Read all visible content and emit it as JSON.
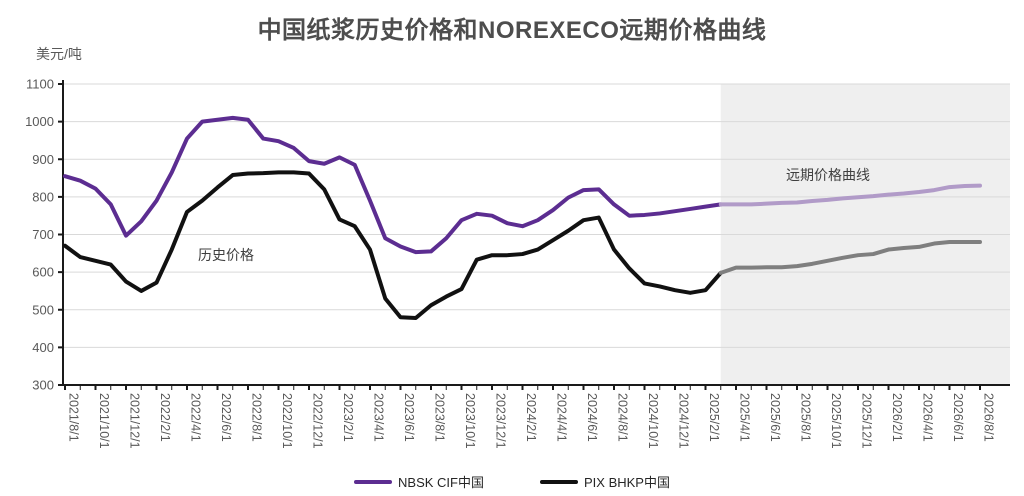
{
  "title": "中国纸浆历史价格和NOREXECO远期价格曲线",
  "y_axis_unit": "美元/吨",
  "annotations": {
    "history_label": "历史价格",
    "forward_label": "远期价格曲线"
  },
  "legend": {
    "items": [
      {
        "label": "NBSK CIF中国",
        "color": "#5C2D91"
      },
      {
        "label": "PIX BHKP中国",
        "color": "#111111"
      }
    ]
  },
  "chart_data": {
    "type": "line",
    "title": "中国纸浆历史价格和NOREXECO远期价格曲线",
    "ylabel": "美元/吨",
    "ylim": [
      300,
      1100
    ],
    "y_ticks": [
      300,
      400,
      500,
      600,
      700,
      800,
      900,
      1000,
      1100
    ],
    "grid": "horizontal",
    "x_start": "2021/8/1",
    "x_step_months": 1,
    "x_tick_labels": [
      "2021/8/1",
      "2021/10/1",
      "2021/12/1",
      "2022/2/1",
      "2022/4/1",
      "2022/6/1",
      "2022/8/1",
      "2022/10/1",
      "2022/12/1",
      "2023/2/1",
      "2023/4/1",
      "2023/6/1",
      "2023/8/1",
      "2023/10/1",
      "2023/12/1",
      "2024/2/1",
      "2024/4/1",
      "2024/6/1",
      "2024/8/1",
      "2024/10/1",
      "2024/12/1",
      "2025/2/1",
      "2025/4/1",
      "2025/6/1",
      "2025/8/1",
      "2025/10/1",
      "2025/12/1",
      "2026/2/1",
      "2026/4/1",
      "2026/6/1",
      "2026/8/1"
    ],
    "forward_region_start": "2025/3/1",
    "forward_region_color": "#EFEFEF",
    "gridline_color": "#D9D9D9",
    "axis_color": "#1a1a1a",
    "tick_label_color": "#595959",
    "series": [
      {
        "name": "NBSK CIF中国 历史",
        "color": "#5C2D91",
        "width": 4,
        "values": [
          855,
          843,
          822,
          780,
          697,
          735,
          790,
          865,
          955,
          1000,
          1005,
          1010,
          1005,
          955,
          948,
          930,
          895,
          888,
          905,
          885,
          790,
          690,
          668,
          653,
          655,
          690,
          738,
          755,
          750,
          730,
          722,
          738,
          765,
          798,
          818,
          820,
          780,
          750,
          752,
          756,
          762,
          768,
          774,
          780,
          null,
          null,
          null,
          null,
          null,
          null,
          null,
          null,
          null,
          null,
          null,
          null,
          null,
          null,
          null,
          null,
          null
        ]
      },
      {
        "name": "NBSK CIF中国 远期",
        "color": "#B19BC8",
        "width": 4,
        "values": [
          null,
          null,
          null,
          null,
          null,
          null,
          null,
          null,
          null,
          null,
          null,
          null,
          null,
          null,
          null,
          null,
          null,
          null,
          null,
          null,
          null,
          null,
          null,
          null,
          null,
          null,
          null,
          null,
          null,
          null,
          null,
          null,
          null,
          null,
          null,
          null,
          null,
          null,
          null,
          null,
          null,
          null,
          null,
          780,
          780,
          780,
          782,
          784,
          785,
          789,
          792,
          796,
          799,
          802,
          806,
          809,
          813,
          818,
          826,
          829,
          830
        ]
      },
      {
        "name": "PIX BHKP中国 历史",
        "color": "#111111",
        "width": 4,
        "values": [
          670,
          640,
          630,
          620,
          575,
          550,
          572,
          660,
          760,
          790,
          825,
          858,
          862,
          863,
          865,
          865,
          862,
          820,
          740,
          722,
          660,
          530,
          480,
          478,
          512,
          535,
          555,
          633,
          645,
          645,
          648,
          660,
          685,
          710,
          738,
          745,
          660,
          610,
          570,
          562,
          552,
          545,
          552,
          598,
          null,
          null,
          null,
          null,
          null,
          null,
          null,
          null,
          null,
          null,
          null,
          null,
          null,
          null,
          null,
          null,
          null
        ]
      },
      {
        "name": "PIX BHKP中国 远期",
        "color": "#7F7F7F",
        "width": 4,
        "values": [
          null,
          null,
          null,
          null,
          null,
          null,
          null,
          null,
          null,
          null,
          null,
          null,
          null,
          null,
          null,
          null,
          null,
          null,
          null,
          null,
          null,
          null,
          null,
          null,
          null,
          null,
          null,
          null,
          null,
          null,
          null,
          null,
          null,
          null,
          null,
          null,
          null,
          null,
          null,
          null,
          null,
          null,
          null,
          598,
          612,
          612,
          613,
          613,
          616,
          622,
          630,
          638,
          645,
          648,
          660,
          664,
          667,
          676,
          680,
          680,
          680
        ]
      }
    ]
  }
}
